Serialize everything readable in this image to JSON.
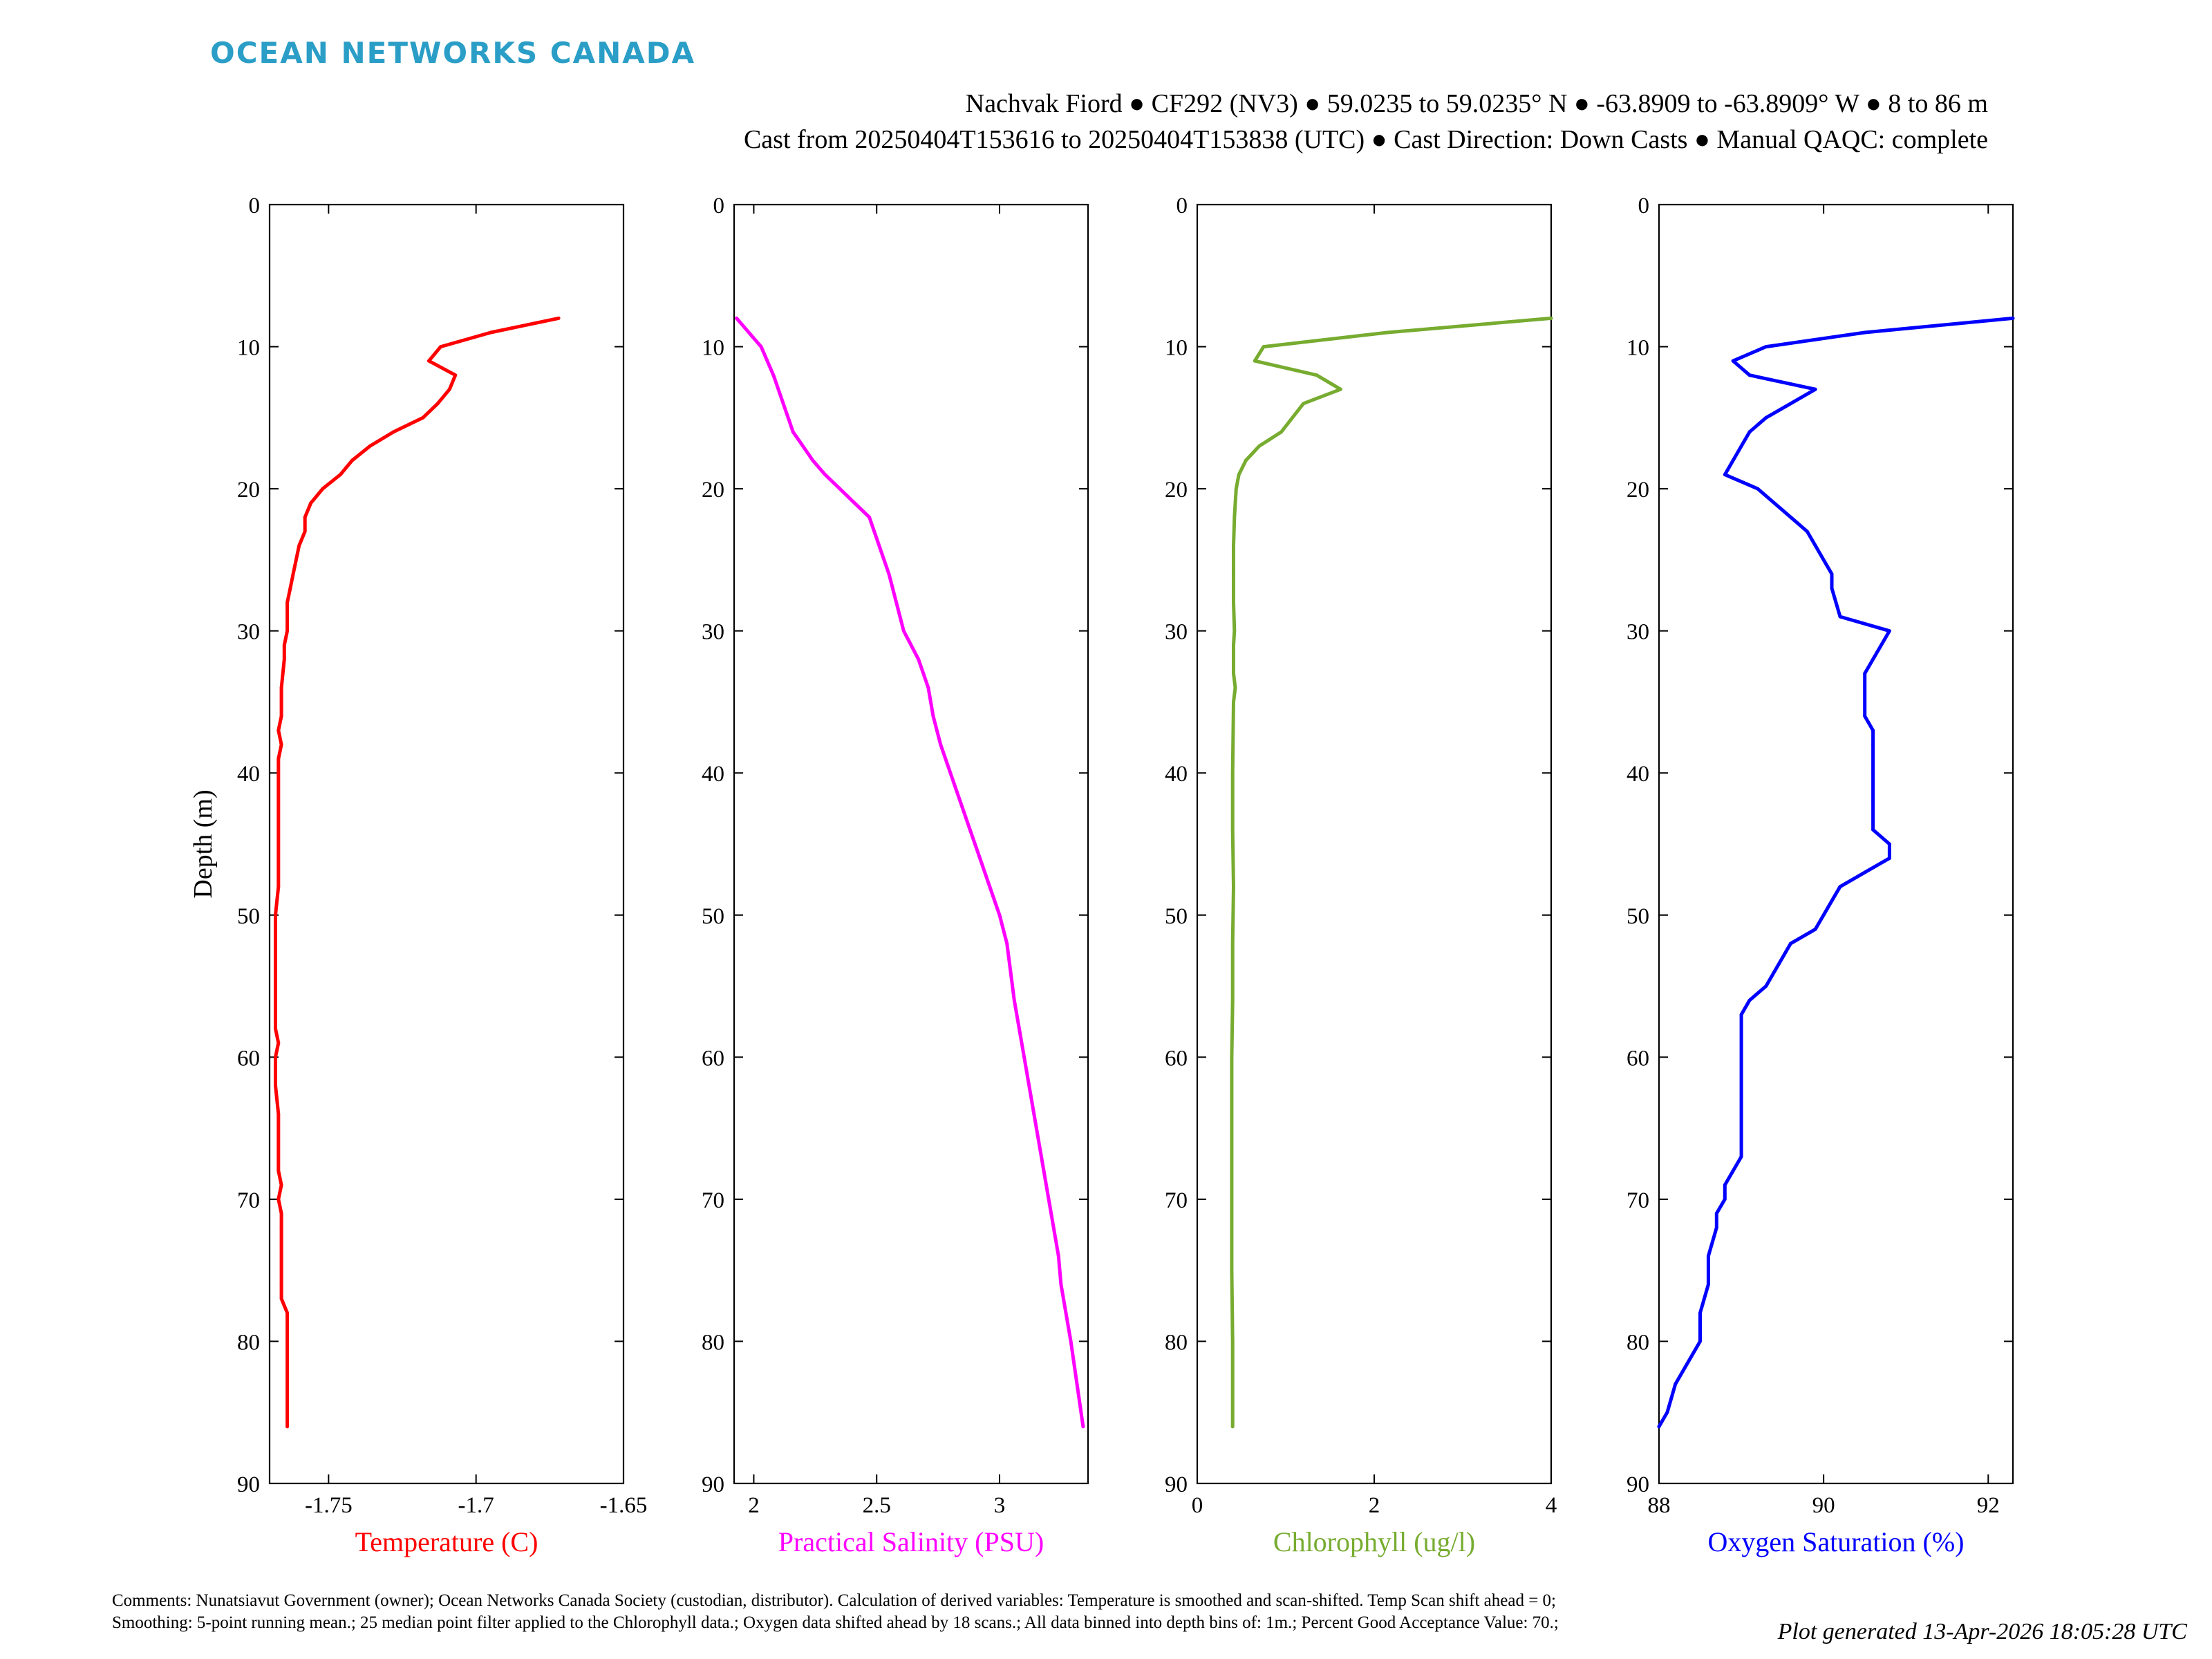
{
  "brand": {
    "name": "OCEAN NETWORKS CANADA",
    "color": "#2a9ec6"
  },
  "header": {
    "line1": "Nachvak Fiord ● CF292 (NV3) ● 59.0235 to 59.0235° N ● -63.8909 to -63.8909° W ● 8 to 86 m",
    "line2": "Cast from 20250404T153616 to 20250404T153838 (UTC) ● Cast Direction: Down Casts ● Manual QAQC: complete"
  },
  "footer": {
    "comments": "Comments: Nunatsiavut Government (owner); Ocean Networks Canada Society (custodian, distributor). Calculation of derived variables: Temperature is smoothed and scan-shifted. Temp Scan shift ahead = 0; Smoothing: 5-point running mean.; 25 median point filter applied to the Chlorophyll data.; Oxygen data shifted ahead by 18 scans.; All data binned into depth bins of: 1m.; Percent Good Acceptance Value: 70.;",
    "generated": "Plot generated 13-Apr-2026 18:05:28 UTC"
  },
  "chart_data": [
    {
      "type": "line",
      "ylabel": "Depth (m)",
      "xlabel": "Temperature (C)",
      "color": "#ff0000",
      "xlim": [
        -1.77,
        -1.65
      ],
      "ylim": [
        0,
        90
      ],
      "y_reversed": true,
      "xticks": [
        -1.75,
        -1.7,
        -1.65
      ],
      "xticklabels": [
        "-1.75",
        "-1.7",
        "-1.65"
      ],
      "yticks": [
        0,
        10,
        20,
        30,
        40,
        50,
        60,
        70,
        80,
        90
      ],
      "x": [
        -1.672,
        -1.695,
        -1.712,
        -1.716,
        -1.707,
        -1.709,
        -1.713,
        -1.718,
        -1.728,
        -1.736,
        -1.742,
        -1.746,
        -1.752,
        -1.756,
        -1.758,
        -1.758,
        -1.76,
        -1.761,
        -1.762,
        -1.763,
        -1.764,
        -1.764,
        -1.764,
        -1.765,
        -1.765,
        -1.766,
        -1.766,
        -1.766,
        -1.767,
        -1.766,
        -1.767,
        -1.767,
        -1.767,
        -1.767,
        -1.767,
        -1.768,
        -1.768,
        -1.768,
        -1.768,
        -1.768,
        -1.767,
        -1.768,
        -1.768,
        -1.767,
        -1.767,
        -1.767,
        -1.767,
        -1.767,
        -1.766,
        -1.767,
        -1.766,
        -1.766,
        -1.766,
        -1.766,
        -1.766,
        -1.766,
        -1.766,
        -1.764,
        -1.764,
        -1.764,
        -1.764,
        -1.764
      ],
      "y": [
        8,
        9,
        10,
        11,
        12,
        13,
        14,
        15,
        16,
        17,
        18,
        19,
        20,
        21,
        22,
        23,
        24,
        25,
        26,
        27,
        28,
        29,
        30,
        31,
        32,
        34,
        35,
        36,
        37,
        38,
        39,
        41,
        44,
        46,
        48,
        50,
        52,
        54,
        56,
        58,
        59,
        60,
        62,
        64,
        65,
        66,
        67,
        68,
        69,
        70,
        71,
        72,
        73,
        74,
        75,
        76,
        77,
        78,
        80,
        81,
        83,
        86
      ]
    },
    {
      "type": "line",
      "xlabel": "Practical Salinity (PSU)",
      "color": "#ff00ff",
      "xlim": [
        1.92,
        3.36
      ],
      "ylim": [
        0,
        90
      ],
      "y_reversed": true,
      "xticks": [
        2,
        2.5,
        3
      ],
      "xticklabels": [
        "2",
        "2.5",
        "3"
      ],
      "yticks": [
        0,
        10,
        20,
        30,
        40,
        50,
        60,
        70,
        80,
        90
      ],
      "x": [
        1.93,
        2.03,
        2.08,
        2.12,
        2.16,
        2.2,
        2.24,
        2.29,
        2.35,
        2.41,
        2.47,
        2.51,
        2.55,
        2.58,
        2.61,
        2.64,
        2.67,
        2.69,
        2.71,
        2.73,
        2.76,
        2.8,
        2.84,
        2.88,
        2.92,
        2.96,
        3.0,
        3.03,
        3.06,
        3.1,
        3.14,
        3.18,
        3.2,
        3.22,
        3.24,
        3.25,
        3.29,
        3.34
      ],
      "y": [
        8,
        10,
        12,
        14,
        16,
        17,
        18,
        19,
        20,
        21,
        22,
        24,
        26,
        28,
        30,
        31,
        32,
        33,
        34,
        36,
        38,
        40,
        42,
        44,
        46,
        48,
        50,
        52,
        56,
        60,
        64,
        68,
        70,
        72,
        74,
        76,
        80,
        86
      ]
    },
    {
      "type": "line",
      "xlabel": "Chlorophyll (ug/l)",
      "color": "#77ac30",
      "xlim": [
        0,
        4
      ],
      "ylim": [
        0,
        90
      ],
      "y_reversed": true,
      "xticks": [
        0,
        2,
        4
      ],
      "xticklabels": [
        "0",
        "2",
        "4"
      ],
      "yticks": [
        0,
        10,
        20,
        30,
        40,
        50,
        60,
        70,
        80,
        90
      ],
      "x": [
        4.0,
        2.15,
        0.75,
        0.65,
        1.35,
        1.62,
        1.2,
        0.95,
        0.7,
        0.55,
        0.47,
        0.44,
        0.42,
        0.41,
        0.41,
        0.41,
        0.41,
        0.42,
        0.41,
        0.41,
        0.41,
        0.43,
        0.41,
        0.4,
        0.4,
        0.41,
        0.4,
        0.4,
        0.39,
        0.39,
        0.39,
        0.39,
        0.4,
        0.4
      ],
      "y": [
        8,
        9,
        10,
        11,
        12,
        13,
        14,
        16,
        17,
        18,
        19,
        20,
        22,
        24,
        26,
        27,
        28,
        30,
        31,
        32,
        33,
        34,
        35,
        40,
        44,
        48,
        52,
        56,
        60,
        65,
        70,
        75,
        80,
        86
      ]
    },
    {
      "type": "line",
      "xlabel": "Oxygen Saturation (%)",
      "color": "#0000ff",
      "xlim": [
        88,
        92.3
      ],
      "ylim": [
        0,
        90
      ],
      "y_reversed": true,
      "xticks": [
        88,
        90,
        92
      ],
      "xticklabels": [
        "88",
        "90",
        "92"
      ],
      "yticks": [
        0,
        10,
        20,
        30,
        40,
        50,
        60,
        70,
        80,
        90
      ],
      "x": [
        92.3,
        90.5,
        89.3,
        88.9,
        89.1,
        89.9,
        89.6,
        89.3,
        89.1,
        89.0,
        88.9,
        88.8,
        89.2,
        89.6,
        89.8,
        89.9,
        90.0,
        90.1,
        90.1,
        90.2,
        90.8,
        90.6,
        90.5,
        90.5,
        90.5,
        90.6,
        90.6,
        90.6,
        90.6,
        90.6,
        90.8,
        90.8,
        90.5,
        90.2,
        90.1,
        90.0,
        89.9,
        89.6,
        89.3,
        89.1,
        89.0,
        89.0,
        89.0,
        89.0,
        89.0,
        89.0,
        88.9,
        88.8,
        88.8,
        88.7,
        88.7,
        88.6,
        88.6,
        88.5,
        88.5,
        88.5,
        88.4,
        88.2,
        88.1,
        88.0,
        88.0
      ],
      "y": [
        8,
        9,
        10,
        11,
        12,
        13,
        14,
        15,
        16,
        17,
        18,
        19,
        20,
        22,
        23,
        24,
        25,
        26,
        27,
        29,
        30,
        32,
        33,
        34,
        36,
        37,
        38,
        40,
        42,
        44,
        45,
        46,
        47,
        48,
        49,
        50,
        51,
        52,
        55,
        56,
        57,
        59,
        61,
        63,
        65,
        67,
        68,
        69,
        70,
        71,
        72,
        74,
        76,
        78,
        79,
        80,
        81,
        83,
        85,
        86,
        86
      ]
    }
  ]
}
